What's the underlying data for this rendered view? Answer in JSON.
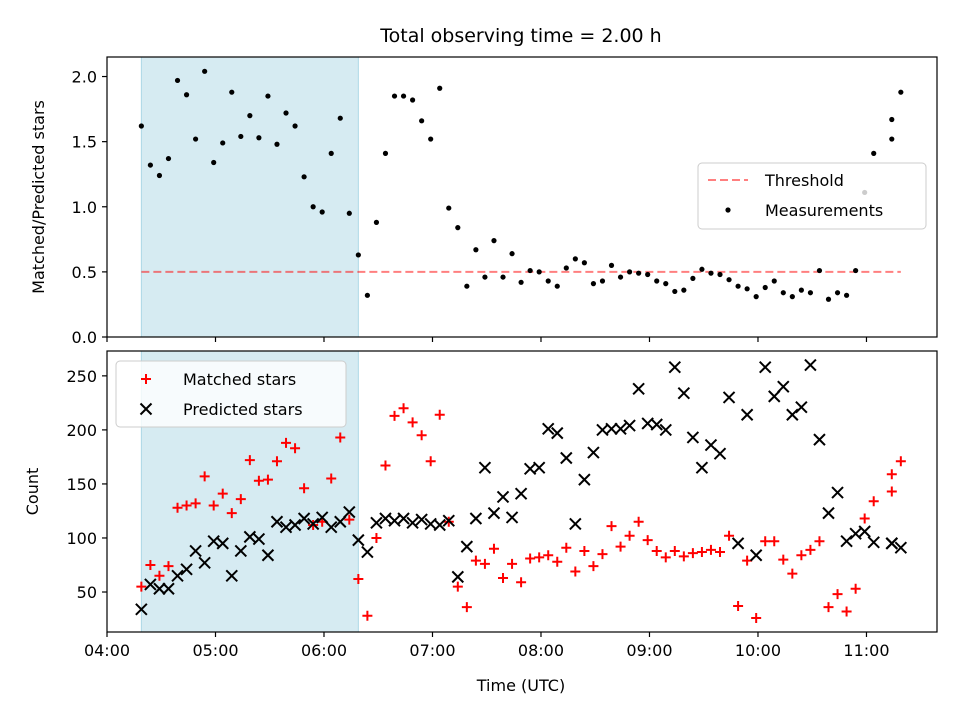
{
  "title": "Total observing time = 2.00 h",
  "xlabel": "Time (UTC)",
  "x_ticks": [
    "04:00",
    "05:00",
    "06:00",
    "07:00",
    "08:00",
    "09:00",
    "10:00",
    "11:00"
  ],
  "colors": {
    "shade": "#add8e6",
    "threshold": "#ff0000",
    "measurement": "#000000",
    "matched": "#ff0000",
    "predicted": "#000000"
  },
  "chart_data": [
    {
      "type": "scatter",
      "ylabel": "Matched/Predicted stars",
      "xlim": [
        "04:00",
        "11:39"
      ],
      "ylim": [
        0,
        2.15
      ],
      "y_ticks": [
        "0.0",
        "0.5",
        "1.0",
        "1.5",
        "2.0"
      ],
      "shaded_range": [
        "04:19",
        "06:19"
      ],
      "threshold": {
        "label": "Threshold",
        "value": 0.5,
        "range": [
          "04:19",
          "11:19"
        ]
      },
      "legend": {
        "placement": "center-right",
        "entries": [
          "Threshold",
          "Measurements"
        ]
      },
      "series": [
        {
          "name": "Measurements",
          "marker": "dot",
          "points": [
            [
              "04:19",
              1.62
            ],
            [
              "04:24",
              1.32
            ],
            [
              "04:29",
              1.24
            ],
            [
              "04:34",
              1.37
            ],
            [
              "04:39",
              1.97
            ],
            [
              "04:44",
              1.86
            ],
            [
              "04:49",
              1.52
            ],
            [
              "04:54",
              2.04
            ],
            [
              "04:59",
              1.34
            ],
            [
              "05:04",
              1.49
            ],
            [
              "05:09",
              1.88
            ],
            [
              "05:14",
              1.54
            ],
            [
              "05:19",
              1.7
            ],
            [
              "05:24",
              1.53
            ],
            [
              "05:29",
              1.85
            ],
            [
              "05:34",
              1.48
            ],
            [
              "05:39",
              1.72
            ],
            [
              "05:44",
              1.62
            ],
            [
              "05:49",
              1.23
            ],
            [
              "05:54",
              1.0
            ],
            [
              "05:59",
              0.96
            ],
            [
              "06:04",
              1.41
            ],
            [
              "06:09",
              1.68
            ],
            [
              "06:14",
              0.95
            ],
            [
              "06:19",
              0.63
            ],
            [
              "06:24",
              0.32
            ],
            [
              "06:29",
              0.88
            ],
            [
              "06:34",
              1.41
            ],
            [
              "06:39",
              1.85
            ],
            [
              "06:44",
              1.85
            ],
            [
              "06:49",
              1.82
            ],
            [
              "06:54",
              1.66
            ],
            [
              "06:59",
              1.52
            ],
            [
              "07:04",
              1.91
            ],
            [
              "07:09",
              0.99
            ],
            [
              "07:14",
              0.84
            ],
            [
              "07:19",
              0.39
            ],
            [
              "07:24",
              0.67
            ],
            [
              "07:29",
              0.46
            ],
            [
              "07:34",
              0.74
            ],
            [
              "07:39",
              0.46
            ],
            [
              "07:44",
              0.64
            ],
            [
              "07:49",
              0.42
            ],
            [
              "07:54",
              0.51
            ],
            [
              "07:59",
              0.5
            ],
            [
              "08:04",
              0.43
            ],
            [
              "08:09",
              0.39
            ],
            [
              "08:14",
              0.53
            ],
            [
              "08:19",
              0.6
            ],
            [
              "08:24",
              0.57
            ],
            [
              "08:29",
              0.41
            ],
            [
              "08:34",
              0.43
            ],
            [
              "08:39",
              0.55
            ],
            [
              "08:44",
              0.46
            ],
            [
              "08:49",
              0.5
            ],
            [
              "08:54",
              0.49
            ],
            [
              "08:59",
              0.48
            ],
            [
              "09:04",
              0.43
            ],
            [
              "09:09",
              0.41
            ],
            [
              "09:14",
              0.35
            ],
            [
              "09:19",
              0.36
            ],
            [
              "09:24",
              0.45
            ],
            [
              "09:29",
              0.52
            ],
            [
              "09:34",
              0.49
            ],
            [
              "09:39",
              0.48
            ],
            [
              "09:44",
              0.44
            ],
            [
              "09:49",
              0.39
            ],
            [
              "09:54",
              0.37
            ],
            [
              "09:59",
              0.31
            ],
            [
              "10:04",
              0.38
            ],
            [
              "10:09",
              0.43
            ],
            [
              "10:14",
              0.34
            ],
            [
              "10:19",
              0.31
            ],
            [
              "10:24",
              0.36
            ],
            [
              "10:29",
              0.34
            ],
            [
              "10:34",
              0.51
            ],
            [
              "10:39",
              0.29
            ],
            [
              "10:44",
              0.34
            ],
            [
              "10:49",
              0.32
            ],
            [
              "10:54",
              0.51
            ],
            [
              "10:59",
              1.11
            ],
            [
              "11:04",
              1.41
            ],
            [
              "11:14",
              1.67
            ],
            [
              "11:14",
              1.52
            ],
            [
              "11:19",
              1.88
            ]
          ]
        }
      ]
    },
    {
      "type": "scatter",
      "ylabel": "Count",
      "xlim": [
        "04:00",
        "11:39"
      ],
      "ylim": [
        13,
        273
      ],
      "y_ticks": [
        "50",
        "100",
        "150",
        "200",
        "250"
      ],
      "shaded_range": [
        "04:19",
        "06:19"
      ],
      "legend": {
        "placement": "upper-left",
        "entries": [
          "Matched stars",
          "Predicted stars"
        ]
      },
      "series": [
        {
          "name": "Matched stars",
          "marker": "plus",
          "points": [
            [
              "04:19",
              55
            ],
            [
              "04:24",
              75
            ],
            [
              "04:29",
              65
            ],
            [
              "04:34",
              74
            ],
            [
              "04:39",
              128
            ],
            [
              "04:44",
              130
            ],
            [
              "04:49",
              132
            ],
            [
              "04:54",
              157
            ],
            [
              "04:59",
              130
            ],
            [
              "05:04",
              141
            ],
            [
              "05:09",
              123
            ],
            [
              "05:14",
              136
            ],
            [
              "05:19",
              172
            ],
            [
              "05:24",
              153
            ],
            [
              "05:29",
              154
            ],
            [
              "05:34",
              171
            ],
            [
              "05:39",
              188
            ],
            [
              "05:44",
              183
            ],
            [
              "05:49",
              146
            ],
            [
              "05:54",
              112
            ],
            [
              "05:59",
              115
            ],
            [
              "06:04",
              155
            ],
            [
              "06:09",
              193
            ],
            [
              "06:14",
              117
            ],
            [
              "06:19",
              62
            ],
            [
              "06:24",
              28
            ],
            [
              "06:29",
              100
            ],
            [
              "06:34",
              167
            ],
            [
              "06:39",
              213
            ],
            [
              "06:44",
              220
            ],
            [
              "06:49",
              207
            ],
            [
              "06:54",
              195
            ],
            [
              "06:59",
              171
            ],
            [
              "07:04",
              214
            ],
            [
              "07:09",
              115
            ],
            [
              "07:14",
              55
            ],
            [
              "07:19",
              36
            ],
            [
              "07:24",
              79
            ],
            [
              "07:29",
              76
            ],
            [
              "07:34",
              90
            ],
            [
              "07:39",
              63
            ],
            [
              "07:44",
              76
            ],
            [
              "07:49",
              59
            ],
            [
              "07:54",
              81
            ],
            [
              "07:59",
              82
            ],
            [
              "08:04",
              84
            ],
            [
              "08:09",
              78
            ],
            [
              "08:14",
              91
            ],
            [
              "08:19",
              69
            ],
            [
              "08:24",
              88
            ],
            [
              "08:29",
              74
            ],
            [
              "08:34",
              85
            ],
            [
              "08:39",
              111
            ],
            [
              "08:44",
              92
            ],
            [
              "08:49",
              102
            ],
            [
              "08:54",
              115
            ],
            [
              "08:59",
              98
            ],
            [
              "09:04",
              88
            ],
            [
              "09:09",
              82
            ],
            [
              "09:14",
              88
            ],
            [
              "09:19",
              83
            ],
            [
              "09:24",
              86
            ],
            [
              "09:29",
              87
            ],
            [
              "09:34",
              89
            ],
            [
              "09:39",
              87
            ],
            [
              "09:44",
              102
            ],
            [
              "09:49",
              37
            ],
            [
              "09:54",
              79
            ],
            [
              "09:59",
              26
            ],
            [
              "10:04",
              97
            ],
            [
              "10:09",
              97
            ],
            [
              "10:14",
              80
            ],
            [
              "10:19",
              67
            ],
            [
              "10:24",
              84
            ],
            [
              "10:29",
              89
            ],
            [
              "10:34",
              97
            ],
            [
              "10:39",
              36
            ],
            [
              "10:44",
              48
            ],
            [
              "10:49",
              32
            ],
            [
              "10:54",
              53
            ],
            [
              "10:59",
              118
            ],
            [
              "11:04",
              134
            ],
            [
              "11:14",
              159
            ],
            [
              "11:14",
              143
            ],
            [
              "11:19",
              171
            ]
          ]
        },
        {
          "name": "Predicted stars",
          "marker": "x",
          "points": [
            [
              "04:19",
              34
            ],
            [
              "04:24",
              57
            ],
            [
              "04:29",
              53
            ],
            [
              "04:34",
              53
            ],
            [
              "04:39",
              65
            ],
            [
              "04:44",
              71
            ],
            [
              "04:49",
              88
            ],
            [
              "04:54",
              77
            ],
            [
              "04:59",
              97
            ],
            [
              "05:04",
              95
            ],
            [
              "05:09",
              65
            ],
            [
              "05:14",
              88
            ],
            [
              "05:19",
              101
            ],
            [
              "05:24",
              99
            ],
            [
              "05:29",
              84
            ],
            [
              "05:34",
              115
            ],
            [
              "05:39",
              110
            ],
            [
              "05:44",
              112
            ],
            [
              "05:49",
              118
            ],
            [
              "05:54",
              113
            ],
            [
              "05:59",
              119
            ],
            [
              "06:04",
              110
            ],
            [
              "06:09",
              115
            ],
            [
              "06:14",
              124
            ],
            [
              "06:19",
              98
            ],
            [
              "06:24",
              87
            ],
            [
              "06:29",
              114
            ],
            [
              "06:34",
              118
            ],
            [
              "06:39",
              116
            ],
            [
              "06:44",
              118
            ],
            [
              "06:49",
              114
            ],
            [
              "06:54",
              117
            ],
            [
              "06:59",
              113
            ],
            [
              "07:04",
              112
            ],
            [
              "07:09",
              116
            ],
            [
              "07:14",
              64
            ],
            [
              "07:19",
              92
            ],
            [
              "07:24",
              118
            ],
            [
              "07:29",
              165
            ],
            [
              "07:34",
              123
            ],
            [
              "07:39",
              138
            ],
            [
              "07:44",
              119
            ],
            [
              "07:49",
              141
            ],
            [
              "07:54",
              164
            ],
            [
              "07:59",
              165
            ],
            [
              "08:04",
              201
            ],
            [
              "08:09",
              197
            ],
            [
              "08:14",
              174
            ],
            [
              "08:19",
              113
            ],
            [
              "08:24",
              154
            ],
            [
              "08:29",
              179
            ],
            [
              "08:34",
              200
            ],
            [
              "08:39",
              201
            ],
            [
              "08:44",
              201
            ],
            [
              "08:49",
              204
            ],
            [
              "08:54",
              238
            ],
            [
              "08:59",
              206
            ],
            [
              "09:04",
              205
            ],
            [
              "09:09",
              200
            ],
            [
              "09:14",
              258
            ],
            [
              "09:19",
              234
            ],
            [
              "09:24",
              193
            ],
            [
              "09:29",
              165
            ],
            [
              "09:34",
              186
            ],
            [
              "09:39",
              178
            ],
            [
              "09:44",
              230
            ],
            [
              "09:49",
              95
            ],
            [
              "09:54",
              214
            ],
            [
              "09:59",
              84
            ],
            [
              "10:04",
              258
            ],
            [
              "10:09",
              231
            ],
            [
              "10:14",
              240
            ],
            [
              "10:19",
              214
            ],
            [
              "10:24",
              221
            ],
            [
              "10:29",
              260
            ],
            [
              "10:34",
              191
            ],
            [
              "10:39",
              123
            ],
            [
              "10:44",
              142
            ],
            [
              "10:49",
              97
            ],
            [
              "10:54",
              104
            ],
            [
              "10:59",
              106
            ],
            [
              "11:04",
              96
            ],
            [
              "11:14",
              95
            ],
            [
              "11:14",
              95
            ],
            [
              "11:19",
              91
            ]
          ]
        }
      ]
    }
  ]
}
